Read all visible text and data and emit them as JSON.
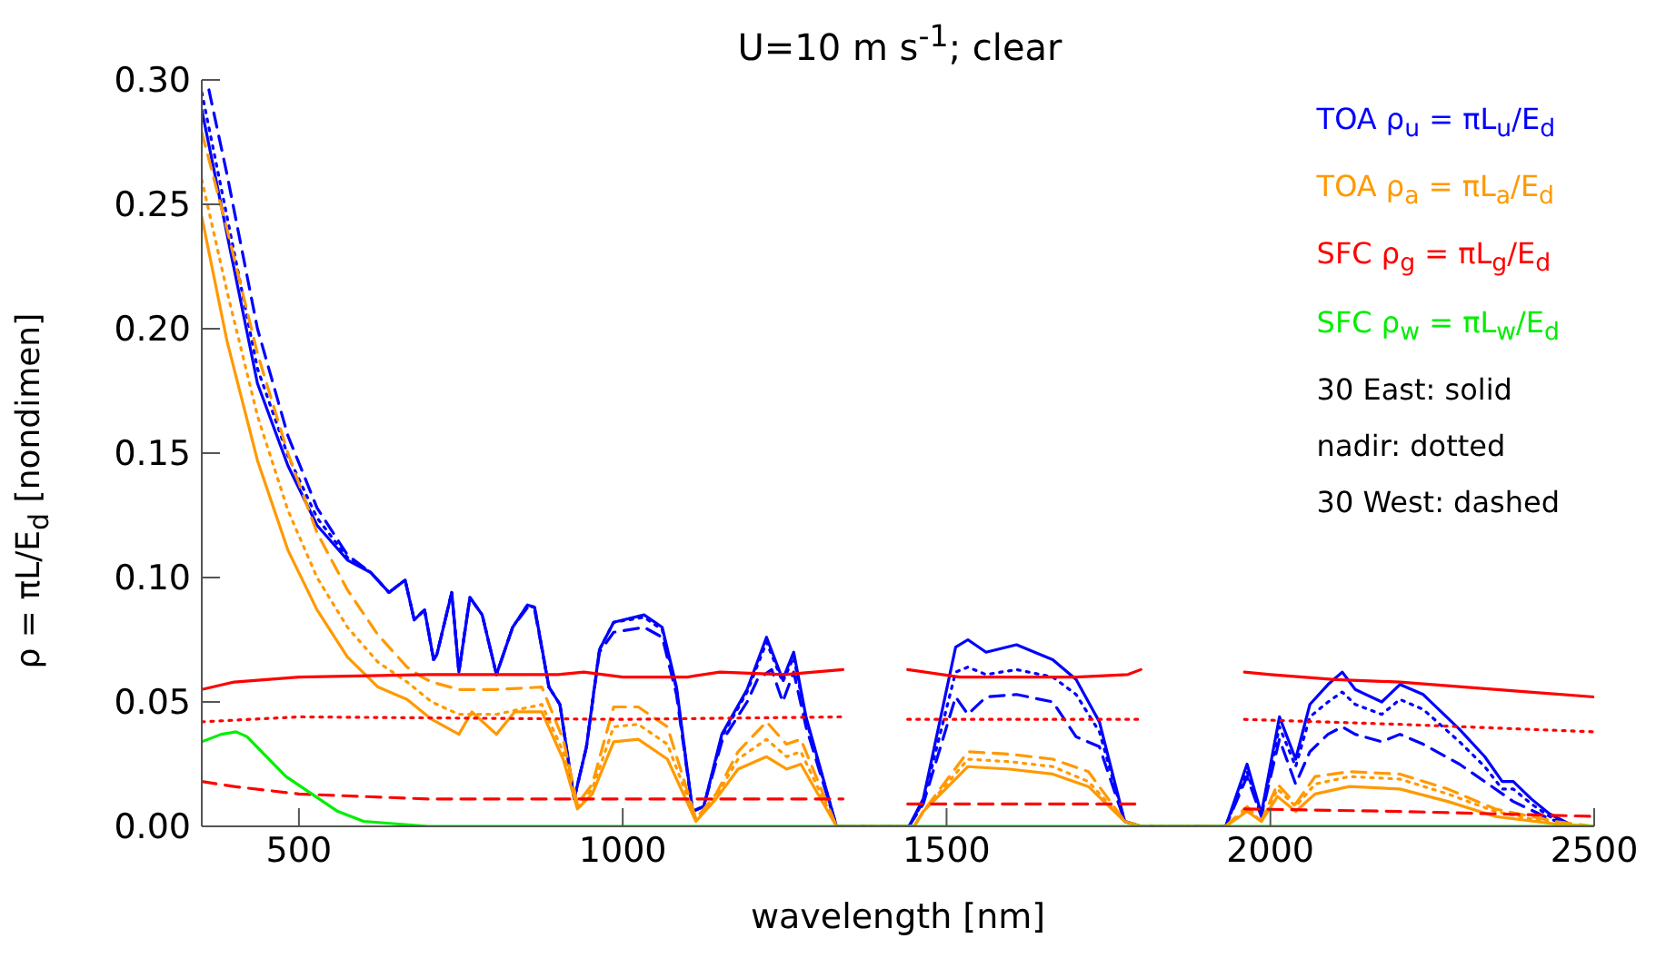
{
  "chart_data": {
    "type": "line",
    "title": "U=10 m s$^{-1}$; clear",
    "xlabel": "wavelength [nm]",
    "ylabel": "ρ = πL/E$_{d}$ [nondimen]",
    "xlim": [
      350,
      2500
    ],
    "xticks": [
      500,
      1000,
      1500,
      2000,
      2500
    ],
    "ylim": [
      0,
      0.3
    ],
    "yticks": [
      {
        "value": 0,
        "label": "0.00"
      },
      0.05,
      {
        "value": 0.1,
        "label": "0.10"
      },
      0.15,
      {
        "value": 0.2,
        "label": "0.20"
      },
      0.25,
      {
        "value": 0.3,
        "label": "0.30"
      }
    ],
    "legend": "top right",
    "marker": "none",
    "annotations": [
      "30 East: solid",
      "nadir: dotted",
      "30 West: dashed"
    ],
    "series": [
      {
        "name": "TOA ρ$_{u}$ = πL$_{u}$/E$_{d}$",
        "color": "#0000ff",
        "line_style": "solid",
        "x": [
          350,
          389,
          436,
          483,
          528,
          575,
          611,
          639,
          664,
          678,
          694,
          708,
          713,
          736,
          747,
          764,
          783,
          805,
          830,
          853,
          864,
          886,
          903,
          925,
          944,
          964,
          986,
          1033,
          1061,
          1083,
          1108,
          1125,
          1153,
          1192,
          1222,
          1247,
          1264,
          1283,
          1330,
          1394,
          1442,
          1464,
          1514,
          1533,
          1561,
          1608,
          1664,
          1700,
          1736,
          1775,
          1800,
          1931,
          1964,
          1986,
          2014,
          2039,
          2061,
          2089,
          2111,
          2131,
          2172,
          2200,
          2236,
          2292,
          2331,
          2358,
          2375,
          2403,
          2431,
          2469,
          2500
        ],
        "values": [
          0.288,
          0.238,
          0.178,
          0.145,
          0.121,
          0.107,
          0.102,
          0.094,
          0.099,
          0.083,
          0.087,
          0.067,
          0.069,
          0.094,
          0.062,
          0.092,
          0.085,
          0.061,
          0.08,
          0.089,
          0.088,
          0.056,
          0.049,
          0.011,
          0.032,
          0.071,
          0.082,
          0.085,
          0.08,
          0.056,
          0.006,
          0.008,
          0.037,
          0.055,
          0.076,
          0.059,
          0.07,
          0.044,
          0,
          0,
          0,
          0.011,
          0.072,
          0.075,
          0.07,
          0.073,
          0.067,
          0.059,
          0.042,
          0.002,
          0,
          0,
          0.025,
          0.005,
          0.044,
          0.027,
          0.049,
          0.057,
          0.062,
          0.055,
          0.05,
          0.057,
          0.053,
          0.039,
          0.028,
          0.018,
          0.018,
          0.011,
          0.005,
          0,
          0
        ]
      },
      {
        "color": "#0000ff",
        "line_style": "dotted",
        "x": [
          350,
          389,
          436,
          483,
          528,
          575,
          611,
          639,
          664,
          678,
          694,
          708,
          713,
          736,
          747,
          764,
          783,
          805,
          830,
          853,
          864,
          886,
          903,
          925,
          944,
          964,
          986,
          1033,
          1061,
          1083,
          1108,
          1125,
          1153,
          1192,
          1222,
          1247,
          1264,
          1283,
          1330,
          1394,
          1442,
          1464,
          1514,
          1533,
          1561,
          1608,
          1664,
          1700,
          1736,
          1775,
          1800,
          1931,
          1964,
          1986,
          2014,
          2039,
          2061,
          2089,
          2111,
          2131,
          2172,
          2200,
          2236,
          2292,
          2331,
          2358,
          2375,
          2403,
          2431,
          2469,
          2500
        ],
        "values": [
          0.295,
          0.245,
          0.184,
          0.149,
          0.124,
          0.108,
          0.102,
          0.094,
          0.099,
          0.083,
          0.087,
          0.067,
          0.069,
          0.094,
          0.062,
          0.092,
          0.085,
          0.061,
          0.08,
          0.089,
          0.088,
          0.056,
          0.049,
          0.011,
          0.032,
          0.071,
          0.082,
          0.084,
          0.079,
          0.055,
          0.006,
          0.008,
          0.036,
          0.054,
          0.074,
          0.058,
          0.068,
          0.043,
          0,
          0,
          0,
          0.01,
          0.062,
          0.064,
          0.061,
          0.063,
          0.06,
          0.053,
          0.038,
          0.002,
          0,
          0,
          0.022,
          0.004,
          0.04,
          0.024,
          0.044,
          0.05,
          0.054,
          0.049,
          0.045,
          0.051,
          0.047,
          0.034,
          0.024,
          0.015,
          0.015,
          0.009,
          0.004,
          0,
          0
        ]
      },
      {
        "color": "#0000ff",
        "line_style": "dashed",
        "x": [
          361,
          389,
          436,
          483,
          528,
          575,
          611,
          639,
          664,
          678,
          694,
          708,
          713,
          736,
          747,
          764,
          783,
          805,
          830,
          853,
          864,
          886,
          903,
          925,
          944,
          964,
          986,
          1033,
          1061,
          1083,
          1108,
          1125,
          1153,
          1192,
          1208,
          1230,
          1247,
          1264,
          1283,
          1330,
          1394,
          1442,
          1464,
          1514,
          1533,
          1561,
          1608,
          1664,
          1700,
          1736,
          1775,
          1800,
          1931,
          1964,
          1986,
          2014,
          2039,
          2061,
          2089,
          2111,
          2131,
          2172,
          2200,
          2236,
          2292,
          2331,
          2375,
          2431,
          2469,
          2500
        ],
        "values": [
          0.296,
          0.262,
          0.2,
          0.157,
          0.128,
          0.109,
          0.102,
          0.094,
          0.099,
          0.083,
          0.087,
          0.067,
          0.069,
          0.094,
          0.062,
          0.092,
          0.085,
          0.061,
          0.08,
          0.088,
          0.087,
          0.056,
          0.049,
          0.011,
          0.032,
          0.07,
          0.078,
          0.08,
          0.076,
          0.053,
          0.006,
          0.008,
          0.034,
          0.05,
          0.059,
          0.063,
          0.05,
          0.062,
          0.04,
          0,
          0,
          0,
          0.009,
          0.052,
          0.045,
          0.052,
          0.053,
          0.05,
          0.036,
          0.032,
          0.002,
          0,
          0,
          0.02,
          0.004,
          0.035,
          0.017,
          0.03,
          0.037,
          0.04,
          0.037,
          0.034,
          0.037,
          0.033,
          0.025,
          0.018,
          0.01,
          0.003,
          0,
          0
        ]
      },
      {
        "name": "TOA ρ$_{a}$ = πL$_{a}$/E$_{d}$",
        "color": "#ff9900",
        "line_style": "solid",
        "x": [
          350,
          389,
          436,
          483,
          528,
          575,
          622,
          667,
          705,
          747,
          767,
          805,
          833,
          875,
          908,
          930,
          953,
          986,
          1024,
          1069,
          1113,
          1144,
          1178,
          1222,
          1253,
          1275,
          1330,
          1450,
          1464,
          1533,
          1597,
          1664,
          1719,
          1775,
          1800,
          1931,
          1964,
          1986,
          2011,
          2039,
          2069,
          2122,
          2200,
          2274,
          2347,
          2439,
          2500
        ],
        "values": [
          0.245,
          0.195,
          0.147,
          0.111,
          0.087,
          0.068,
          0.056,
          0.051,
          0.043,
          0.037,
          0.046,
          0.037,
          0.046,
          0.046,
          0.027,
          0.007,
          0.013,
          0.034,
          0.035,
          0.027,
          0.002,
          0.011,
          0.023,
          0.028,
          0.023,
          0.025,
          0,
          0,
          0.006,
          0.024,
          0.023,
          0.021,
          0.016,
          0.002,
          0,
          0,
          0.006,
          0.002,
          0.012,
          0.006,
          0.013,
          0.016,
          0.015,
          0.01,
          0.004,
          0.001,
          0
        ]
      },
      {
        "color": "#ff9900",
        "line_style": "dotted",
        "x": [
          350,
          389,
          436,
          483,
          528,
          575,
          622,
          667,
          705,
          747,
          805,
          875,
          908,
          930,
          953,
          986,
          1024,
          1069,
          1113,
          1144,
          1178,
          1222,
          1253,
          1275,
          1330,
          1450,
          1464,
          1533,
          1597,
          1664,
          1719,
          1775,
          1800,
          1931,
          1964,
          1986,
          2011,
          2039,
          2069,
          2122,
          2200,
          2274,
          2347,
          2439,
          2500
        ],
        "values": [
          0.26,
          0.215,
          0.165,
          0.127,
          0.1,
          0.08,
          0.066,
          0.058,
          0.05,
          0.045,
          0.045,
          0.049,
          0.03,
          0.008,
          0.015,
          0.04,
          0.041,
          0.033,
          0.003,
          0.012,
          0.027,
          0.035,
          0.028,
          0.03,
          0,
          0,
          0.006,
          0.027,
          0.026,
          0.024,
          0.018,
          0.002,
          0,
          0,
          0.007,
          0.002,
          0.015,
          0.008,
          0.017,
          0.02,
          0.019,
          0.013,
          0.006,
          0.001,
          0
        ]
      },
      {
        "color": "#ff9900",
        "line_style": "dashed",
        "x": [
          350,
          389,
          436,
          483,
          528,
          575,
          622,
          667,
          690,
          705,
          747,
          805,
          875,
          908,
          930,
          953,
          986,
          1024,
          1069,
          1113,
          1144,
          1178,
          1222,
          1253,
          1275,
          1330,
          1450,
          1464,
          1533,
          1597,
          1664,
          1719,
          1775,
          1800,
          1931,
          1964,
          1986,
          2011,
          2039,
          2069,
          2122,
          2200,
          2274,
          2347,
          2439,
          2500
        ],
        "values": [
          0.279,
          0.24,
          0.19,
          0.15,
          0.118,
          0.095,
          0.077,
          0.064,
          0.06,
          0.058,
          0.055,
          0.055,
          0.056,
          0.035,
          0.009,
          0.017,
          0.048,
          0.048,
          0.04,
          0.003,
          0.013,
          0.03,
          0.042,
          0.033,
          0.035,
          0,
          0,
          0.006,
          0.03,
          0.029,
          0.027,
          0.022,
          0.002,
          0,
          0,
          0.008,
          0.002,
          0.017,
          0.009,
          0.02,
          0.022,
          0.021,
          0.015,
          0.007,
          0.002,
          0
        ]
      },
      {
        "name": "SFC ρ$_{g}$ = πL$_{g}$/E$_{d}$",
        "color": "#ff0000",
        "line_style": "solid",
        "x": [
          350,
          400,
          500,
          700,
          900,
          940,
          1000,
          1100,
          1150,
          1250,
          1340,
          1390,
          1440,
          1520,
          1700,
          1780,
          1800,
          1880,
          1960,
          2000,
          2100,
          2200,
          2300,
          2400,
          2500
        ],
        "values": [
          0.055,
          0.058,
          0.06,
          0.061,
          0.061,
          0.062,
          0.06,
          0.06,
          0.062,
          0.061,
          0.063,
          null,
          0.063,
          0.06,
          0.06,
          0.061,
          0.063,
          null,
          0.062,
          0.061,
          0.059,
          0.058,
          0.056,
          0.054,
          0.052
        ]
      },
      {
        "color": "#ff0000",
        "line_style": "dotted",
        "x": [
          350,
          500,
          1000,
          1340,
          1390,
          1440,
          1800,
          1880,
          1960,
          2200,
          2500
        ],
        "values": [
          0.042,
          0.044,
          0.043,
          0.044,
          null,
          0.043,
          0.043,
          null,
          0.043,
          0.041,
          0.038
        ]
      },
      {
        "color": "#ff0000",
        "line_style": "dashed",
        "x": [
          350,
          400,
          500,
          700,
          1000,
          1340,
          1390,
          1440,
          1800,
          1880,
          1960,
          2200,
          2500
        ],
        "values": [
          0.018,
          0.016,
          0.013,
          0.011,
          0.011,
          0.011,
          null,
          0.009,
          0.009,
          null,
          0.007,
          0.006,
          0.004
        ]
      },
      {
        "name": "SFC ρ$_{w}$ = πL$_{w}$/E$_{d}$",
        "color": "#00ee00",
        "line_style": "solid",
        "x": [
          350,
          380,
          403,
          420,
          450,
          480,
          520,
          560,
          600,
          650,
          700,
          2500
        ],
        "values": [
          0.034,
          0.037,
          0.038,
          0.036,
          0.028,
          0.02,
          0.013,
          0.006,
          0.002,
          0.001,
          0,
          0
        ]
      }
    ]
  }
}
